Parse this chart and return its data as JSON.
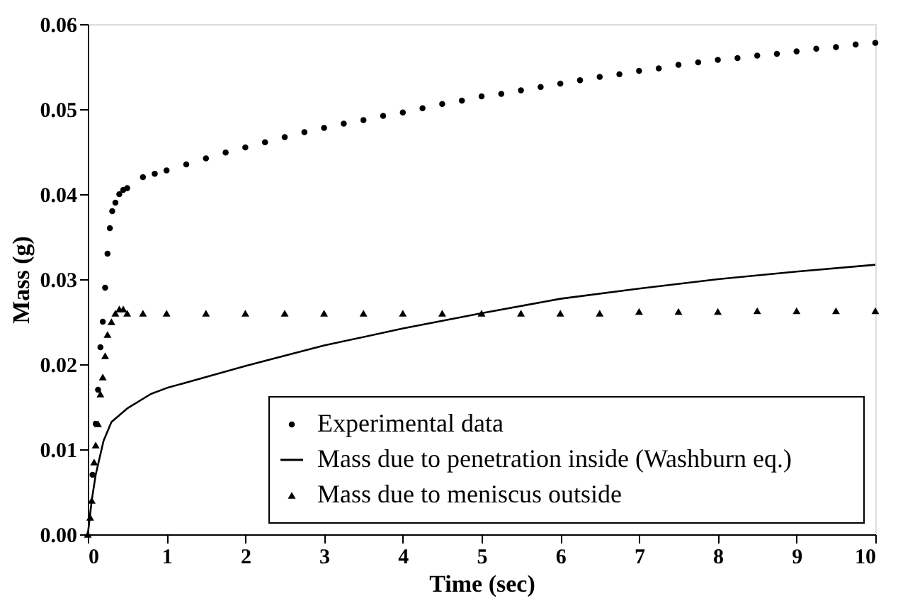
{
  "chart_data": {
    "type": "scatter",
    "xlabel": "Time (sec)",
    "ylabel": "Mass (g)",
    "xlim": [
      0,
      10
    ],
    "xticks": [
      0,
      1,
      2,
      3,
      4,
      5,
      6,
      7,
      8,
      9,
      10
    ],
    "ylim": [
      0,
      0.06
    ],
    "yticks": [
      {
        "value": 0,
        "label": "0.00"
      },
      {
        "value": 0.01,
        "label": "0.01"
      },
      {
        "value": 0.02,
        "label": "0.02"
      },
      {
        "value": 0.03,
        "label": "0.03"
      },
      {
        "value": 0.04,
        "label": "0.04"
      },
      {
        "value": 0.05,
        "label": "0.05"
      },
      {
        "value": 0.06,
        "label": "0.06"
      }
    ],
    "grid": false,
    "legend": "bottom right",
    "series": [
      {
        "name": "Experimental data",
        "marker": "circle",
        "color": "#000000",
        "x": [
          0.06,
          0.1,
          0.13,
          0.16,
          0.19,
          0.22,
          0.25,
          0.28,
          0.31,
          0.35,
          0.4,
          0.45,
          0.5,
          0.7,
          0.85,
          1,
          1.25,
          1.5,
          1.75,
          2,
          2.25,
          2.5,
          2.75,
          3,
          3.25,
          3.5,
          3.75,
          4,
          4.25,
          4.5,
          4.75,
          5,
          5.25,
          5.5,
          5.75,
          6,
          6.25,
          6.5,
          6.75,
          7,
          7.25,
          7.5,
          7.75,
          8,
          8.25,
          8.5,
          8.75,
          9,
          9.25,
          9.5,
          9.75,
          10
        ],
        "values": [
          0.007,
          0.013,
          0.017,
          0.022,
          0.025,
          0.029,
          0.033,
          0.036,
          0.038,
          0.039,
          0.04,
          0.0405,
          0.0407,
          0.042,
          0.0424,
          0.0428,
          0.0435,
          0.0442,
          0.0449,
          0.0455,
          0.0461,
          0.0467,
          0.0473,
          0.0478,
          0.0483,
          0.0487,
          0.0492,
          0.0496,
          0.0501,
          0.0506,
          0.051,
          0.0515,
          0.0518,
          0.0522,
          0.0526,
          0.053,
          0.0534,
          0.0538,
          0.0541,
          0.0545,
          0.0548,
          0.0552,
          0.0555,
          0.0558,
          0.056,
          0.0563,
          0.0565,
          0.0568,
          0.0571,
          0.0573,
          0.0576,
          0.0578
        ]
      },
      {
        "name": "Mass due to penetration inside (Washburn eq.)",
        "type": "line",
        "line_style": "solid",
        "color": "#000000",
        "x": [
          0,
          0.05,
          0.1,
          0.2,
          0.3,
          0.5,
          0.8,
          1,
          2,
          3,
          4,
          5,
          6,
          7,
          8,
          9,
          10
        ],
        "values": [
          0,
          0.004,
          0.007,
          0.011,
          0.0132,
          0.0148,
          0.0165,
          0.0172,
          0.0198,
          0.0222,
          0.0242,
          0.026,
          0.0277,
          0.0289,
          0.03,
          0.0309,
          0.0317
        ]
      },
      {
        "name": "Mass due to meniscus outside",
        "marker": "triangle",
        "color": "#000000",
        "x": [
          0,
          0.03,
          0.05,
          0.08,
          0.1,
          0.13,
          0.16,
          0.19,
          0.22,
          0.25,
          0.3,
          0.35,
          0.4,
          0.45,
          0.5,
          0.7,
          1,
          1.5,
          2,
          2.5,
          3,
          3.5,
          4,
          4.5,
          5,
          5.5,
          6,
          6.5,
          7,
          7.5,
          8,
          8.5,
          9,
          9.5,
          10
        ],
        "values": [
          0,
          0.002,
          0.004,
          0.0085,
          0.0105,
          0.013,
          0.0165,
          0.0185,
          0.021,
          0.0235,
          0.025,
          0.026,
          0.0265,
          0.0265,
          0.026,
          0.026,
          0.026,
          0.026,
          0.026,
          0.026,
          0.026,
          0.026,
          0.026,
          0.026,
          0.026,
          0.026,
          0.026,
          0.026,
          0.0262,
          0.0262,
          0.0262,
          0.0263,
          0.0263,
          0.0263,
          0.0263
        ]
      }
    ]
  }
}
